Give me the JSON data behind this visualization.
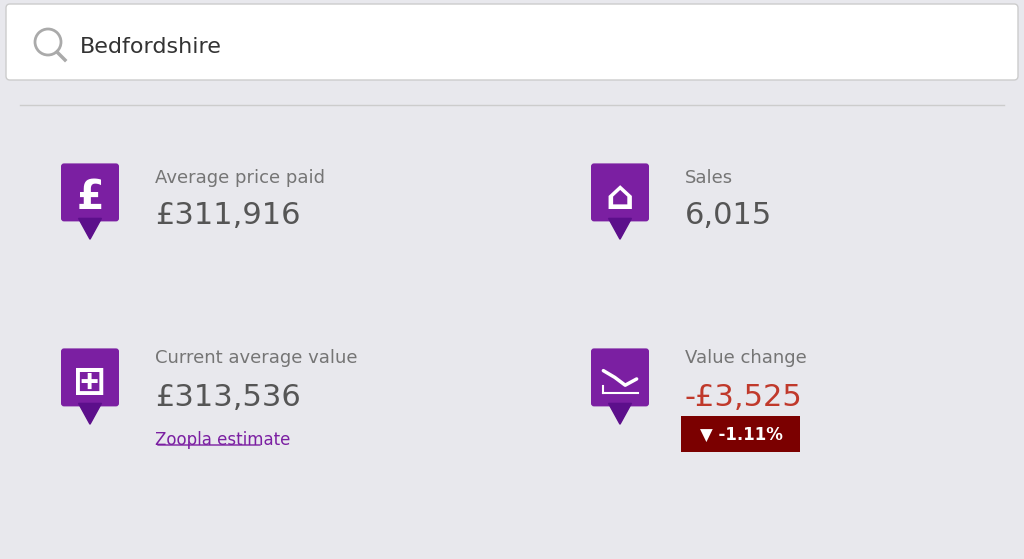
{
  "bg_color": "#e8e8ed",
  "search_bar_color": "#ffffff",
  "search_text": "Bedfordshire",
  "search_text_color": "#333333",
  "search_icon_color": "#aaaaaa",
  "divider_color": "#cccccc",
  "icon_color": "#7b1fa2",
  "icon_dark_color": "#5c0f8b",
  "label1": "Average price paid",
  "value1": "£311,916",
  "label2": "Sales",
  "value2": "6,015",
  "label3": "Current average value",
  "value3": "£313,536",
  "label4": "Value change",
  "value4": "-£3,525",
  "label_color": "#757575",
  "value_color": "#555555",
  "value4_color": "#c0392b",
  "badge_text": "▼ -1.11%",
  "badge_bg": "#7b0000",
  "badge_text_color": "#ffffff",
  "zoopla_text": "Zoopla estimate",
  "zoopla_color": "#7b1fa2",
  "label_fontsize": 13,
  "value_fontsize": 22,
  "value4_fontsize": 22
}
